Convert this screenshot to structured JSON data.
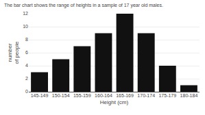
{
  "chart_data": {
    "type": "bar",
    "title": "The bar chart shows the range of heights in a sample of 17 year old males.",
    "categories": [
      "145-149",
      "150-154",
      "155-159",
      "160-164",
      "165-169",
      "170-174",
      "175-179",
      "180-184"
    ],
    "values": [
      3,
      5,
      7,
      9,
      12,
      9,
      4,
      1
    ],
    "color": "#111111",
    "xlabel": "Height (cm)",
    "ylabel": "number\nof people",
    "ylim": [
      0,
      12
    ],
    "yticks": [
      0,
      2,
      4,
      6,
      8,
      10,
      12
    ],
    "grid": true
  }
}
